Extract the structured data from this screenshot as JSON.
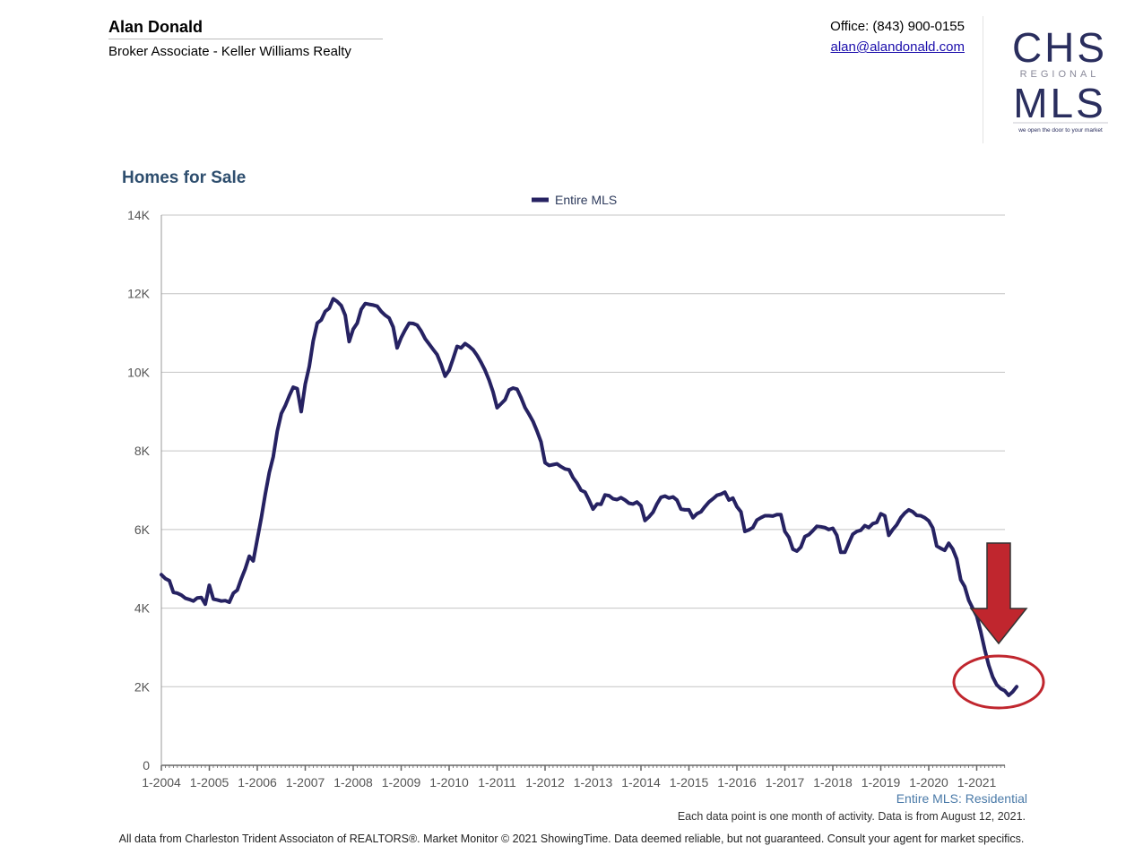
{
  "header": {
    "agent_name": "Alan Donald",
    "agent_title": "Broker Associate - Keller Williams Realty",
    "office": "Office: (843) 900-0155",
    "email": "alan@alandonald.com"
  },
  "logo": {
    "top": "CHS",
    "middle": "REGIONAL",
    "bottom": "MLS",
    "tagline": "we open the door to your market"
  },
  "chart_data": {
    "type": "line",
    "title": "Homes for Sale",
    "subtitle": "Entire MLS: Residential",
    "legend_position": "top-center",
    "grid": true,
    "ylim": [
      0,
      14000
    ],
    "y_ticks": [
      "0",
      "2K",
      "4K",
      "6K",
      "8K",
      "10K",
      "12K",
      "14K"
    ],
    "x_ticks": [
      "1-2004",
      "1-2005",
      "1-2006",
      "1-2007",
      "1-2008",
      "1-2009",
      "1-2010",
      "1-2011",
      "1-2012",
      "1-2013",
      "1-2014",
      "1-2015",
      "1-2016",
      "1-2017",
      "1-2018",
      "1-2019",
      "1-2020",
      "1-2021"
    ],
    "x_start": "2004-01",
    "color": "#262262",
    "series": [
      {
        "name": "Entire MLS",
        "values": [
          4850,
          4750,
          4700,
          4400,
          4380,
          4330,
          4250,
          4220,
          4180,
          4260,
          4270,
          4100,
          4580,
          4230,
          4210,
          4180,
          4190,
          4150,
          4380,
          4460,
          4750,
          5000,
          5320,
          5200,
          5750,
          6300,
          6900,
          7450,
          7850,
          8500,
          8950,
          9150,
          9400,
          9620,
          9580,
          9000,
          9700,
          10150,
          10800,
          11250,
          11330,
          11550,
          11630,
          11870,
          11800,
          11700,
          11450,
          10780,
          11100,
          11250,
          11600,
          11750,
          11730,
          11710,
          11680,
          11550,
          11450,
          11380,
          11150,
          10620,
          10880,
          11080,
          11250,
          11240,
          11200,
          11050,
          10850,
          10720,
          10580,
          10450,
          10200,
          9900,
          10050,
          10350,
          10660,
          10620,
          10730,
          10660,
          10570,
          10430,
          10250,
          10050,
          9800,
          9500,
          9100,
          9200,
          9300,
          9550,
          9600,
          9570,
          9350,
          9100,
          8930,
          8750,
          8500,
          8230,
          7700,
          7630,
          7650,
          7670,
          7600,
          7540,
          7520,
          7320,
          7180,
          7000,
          6950,
          6750,
          6520,
          6650,
          6640,
          6880,
          6860,
          6780,
          6760,
          6810,
          6750,
          6670,
          6650,
          6700,
          6600,
          6230,
          6320,
          6440,
          6650,
          6820,
          6850,
          6800,
          6830,
          6750,
          6520,
          6500,
          6500,
          6300,
          6400,
          6450,
          6580,
          6700,
          6780,
          6870,
          6900,
          6950,
          6750,
          6800,
          6580,
          6450,
          5950,
          5990,
          6050,
          6240,
          6300,
          6350,
          6350,
          6340,
          6380,
          6380,
          5950,
          5800,
          5500,
          5450,
          5550,
          5820,
          5870,
          5970,
          6080,
          6070,
          6050,
          6000,
          6030,
          5850,
          5420,
          5420,
          5650,
          5880,
          5950,
          5980,
          6100,
          6050,
          6150,
          6180,
          6400,
          6350,
          5850,
          6000,
          6120,
          6300,
          6420,
          6500,
          6450,
          6360,
          6350,
          6300,
          6220,
          6040,
          5580,
          5520,
          5470,
          5650,
          5500,
          5250,
          4720,
          4550,
          4200,
          4000,
          3800,
          3400,
          2950,
          2550,
          2250,
          2050,
          1950,
          1900,
          1780,
          1870,
          2000
        ]
      }
    ]
  },
  "footer": {
    "note": "Each data point is one month of activity. Data is from August 12, 2021.",
    "disclaimer": "All data from Charleston Trident Associaton of REALTORS®. Market Monitor © 2021 ShowingTime. Data deemed reliable, but not guaranteed. Consult your agent for market specifics."
  }
}
